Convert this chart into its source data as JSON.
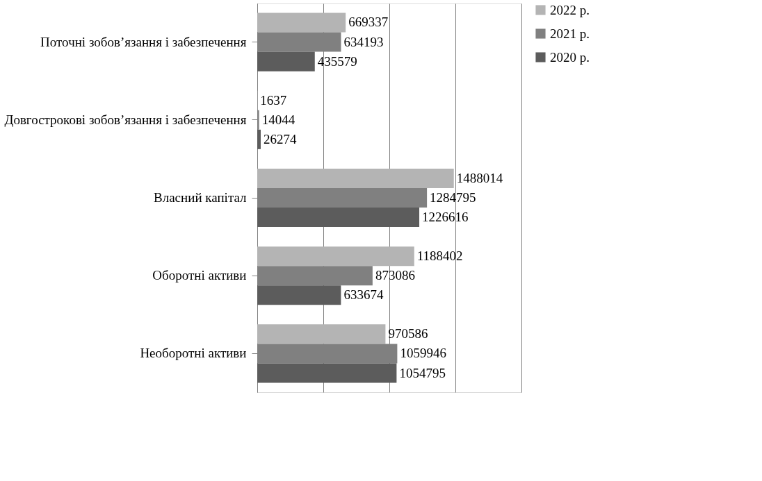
{
  "chart_data": {
    "type": "bar",
    "orientation": "horizontal",
    "categories": [
      "Поточні зобов’язання і забезпечення",
      "Довгострокові зобов’язання і забезпечення",
      "Власний капітал",
      "Оборотні активи",
      "Необоротні активи"
    ],
    "series": [
      {
        "name": "2022 р.",
        "color": "#b4b4b4",
        "values": [
          669337,
          1637,
          1488014,
          1188402,
          970586
        ]
      },
      {
        "name": "2021 р.",
        "color": "#808080",
        "values": [
          634193,
          14044,
          1284795,
          873086,
          1059946
        ]
      },
      {
        "name": "2020 р.",
        "color": "#5c5c5c",
        "values": [
          435579,
          26274,
          1226616,
          633674,
          1054795
        ]
      }
    ],
    "xlim": [
      0,
      2000000
    ],
    "xticks": [
      {
        "value": 0,
        "label": null
      },
      {
        "value": 500000,
        "label": null
      },
      {
        "value": 1000000,
        "label": null
      },
      {
        "value": 1500000,
        "label": null
      },
      {
        "value": 2000000,
        "label": null
      }
    ],
    "grid": "x",
    "tick_labels": "y",
    "legend": "right",
    "data_labels": true
  }
}
